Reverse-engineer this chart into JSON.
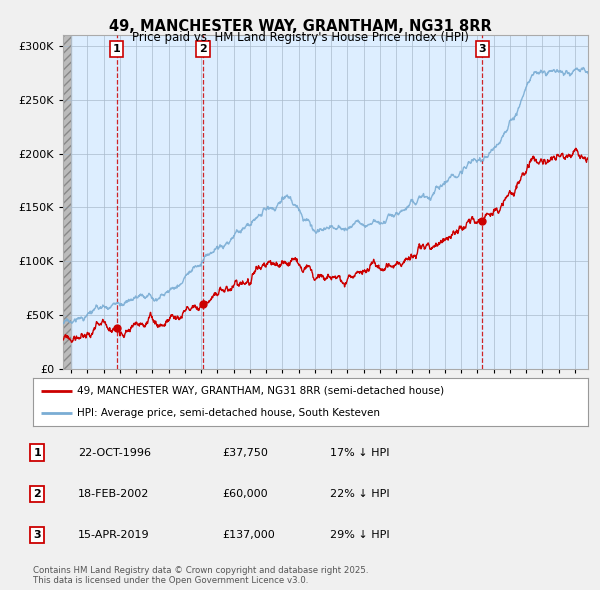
{
  "title": "49, MANCHESTER WAY, GRANTHAM, NG31 8RR",
  "subtitle": "Price paid vs. HM Land Registry's House Price Index (HPI)",
  "legend_line1": "49, MANCHESTER WAY, GRANTHAM, NG31 8RR (semi-detached house)",
  "legend_line2": "HPI: Average price, semi-detached house, South Kesteven",
  "footer": "Contains HM Land Registry data © Crown copyright and database right 2025.\nThis data is licensed under the Open Government Licence v3.0.",
  "table": [
    {
      "num": "1",
      "date": "22-OCT-1996",
      "price": "£37,750",
      "hpi": "17% ↓ HPI"
    },
    {
      "num": "2",
      "date": "18-FEB-2002",
      "price": "£60,000",
      "hpi": "22% ↓ HPI"
    },
    {
      "num": "3",
      "date": "15-APR-2019",
      "price": "£137,000",
      "hpi": "29% ↓ HPI"
    }
  ],
  "sale_dates": [
    1996.81,
    2002.12,
    2019.29
  ],
  "sale_prices": [
    37750,
    60000,
    137000
  ],
  "ylim": [
    0,
    310000
  ],
  "yticks": [
    0,
    50000,
    100000,
    150000,
    200000,
    250000,
    300000
  ],
  "xlim_start": 1993.5,
  "xlim_end": 2025.8,
  "red_color": "#cc0000",
  "blue_color": "#7aadd4",
  "plot_bg": "#ddeeff",
  "chart_bg": "#e8f0f8",
  "hatch_bg": "#c8c8c8",
  "bg_color": "#f0f0f0"
}
